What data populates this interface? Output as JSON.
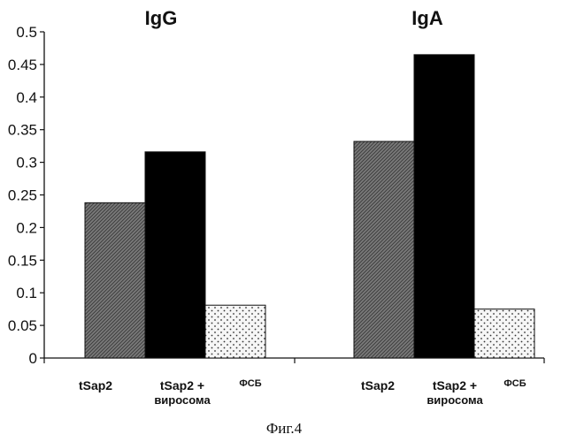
{
  "caption": "Фиг.4",
  "chart_data": {
    "type": "bar",
    "groups": [
      "IgG",
      "IgA"
    ],
    "categories": [
      "tSap2",
      "tSap2 + вирос­ома",
      "ФСБ"
    ],
    "category_labels": [
      {
        "line1": "tSap2",
        "line2": ""
      },
      {
        "line1": "tSap2 +",
        "line2": "виросома"
      },
      {
        "line1": "ФСБ",
        "line2": ""
      }
    ],
    "values": {
      "IgG": [
        0.238,
        0.316,
        0.081
      ],
      "IgA": [
        0.332,
        0.465,
        0.075
      ]
    },
    "ylim": [
      0,
      0.5
    ],
    "yticks": [
      "0",
      "0.05",
      "0.1",
      "0.15",
      "0.2",
      "0.25",
      "0.3",
      "0.35",
      "0.4",
      "0.45",
      "0.5"
    ],
    "ytick_values": [
      0,
      0.05,
      0.1,
      0.15,
      0.2,
      0.25,
      0.3,
      0.35,
      0.4,
      0.45,
      0.5
    ],
    "fills": [
      "hatched-gray",
      "black",
      "dotted-light"
    ],
    "colors": {
      "hatch": "#6e6e6e",
      "solid": "#000000",
      "dots": "#f4f4f4"
    },
    "xlabel": "",
    "ylabel": "",
    "grid": false,
    "legend": "none"
  }
}
